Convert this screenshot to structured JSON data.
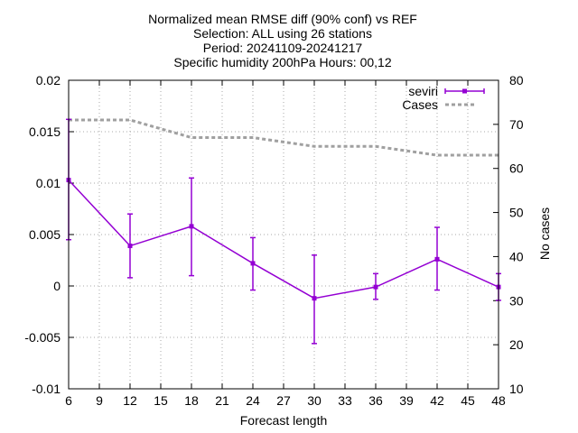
{
  "chart_data": {
    "type": "line",
    "title_lines": [
      "Normalized mean RMSE diff (90% conf) vs REF",
      "Selection: ALL using    26 stations",
      "Period: 20241109-20241217",
      "Specific humidity 200hPa   Hours: 00,12"
    ],
    "xlabel": "Forecast length",
    "ylabel": "",
    "y2label": "No cases",
    "xlim": [
      6,
      48
    ],
    "ylim": [
      -0.01,
      0.02
    ],
    "y2lim": [
      10,
      80
    ],
    "x_ticks": [
      6,
      9,
      12,
      15,
      18,
      21,
      24,
      27,
      30,
      33,
      36,
      39,
      42,
      45,
      48
    ],
    "y_ticks": [
      -0.01,
      -0.005,
      0,
      0.005,
      0.01,
      0.015,
      0.02
    ],
    "y_tick_labels": [
      "-0.01",
      "-0.005",
      "0",
      "0.005",
      "0.01",
      "0.015",
      "0.02"
    ],
    "y2_ticks": [
      10,
      20,
      30,
      40,
      50,
      60,
      70,
      80
    ],
    "grid": true,
    "legend_position": "top-right",
    "series": [
      {
        "name": "seviri",
        "axis": "y",
        "color": "#9400d3",
        "style": "errorlines",
        "x": [
          6,
          12,
          18,
          24,
          30,
          36,
          42,
          48
        ],
        "values": [
          0.0103,
          0.0039,
          0.0058,
          0.0022,
          -0.0012,
          -0.0001,
          0.0026,
          -0.0001
        ],
        "err_low": [
          0.0045,
          0.0008,
          0.001,
          -0.0004,
          -0.0056,
          -0.0013,
          -0.0004,
          -0.0014
        ],
        "err_high": [
          0.0162,
          0.007,
          0.0105,
          0.0047,
          0.003,
          0.0012,
          0.0057,
          0.0012
        ]
      },
      {
        "name": "Cases",
        "axis": "y2",
        "color": "#a0a0a0",
        "style": "dashed",
        "x": [
          6,
          9,
          12,
          15,
          18,
          21,
          24,
          27,
          30,
          33,
          36,
          39,
          42,
          45,
          48
        ],
        "values": [
          71,
          71,
          71,
          69,
          67,
          67,
          67,
          66,
          65,
          65,
          65,
          64,
          63,
          63,
          63
        ]
      }
    ]
  }
}
